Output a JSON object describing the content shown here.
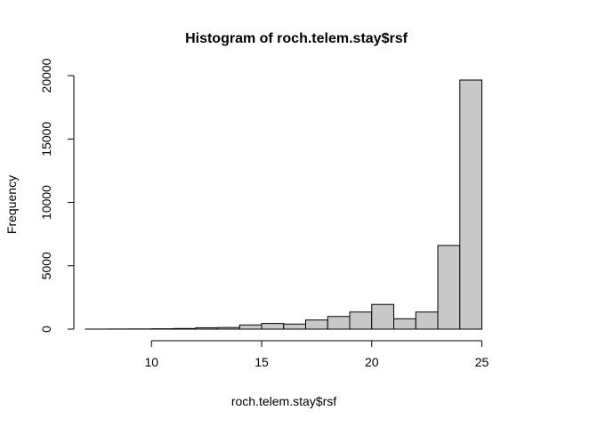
{
  "chart_data": {
    "type": "bar",
    "title": "Histogram of roch.telem.stay$rsf",
    "xlabel": "roch.telem.stay$rsf",
    "ylabel": "Frequency",
    "bin_width": 1,
    "bins": [
      {
        "start": 7,
        "end": 8,
        "count": 5
      },
      {
        "start": 8,
        "end": 9,
        "count": 10
      },
      {
        "start": 9,
        "end": 10,
        "count": 15
      },
      {
        "start": 10,
        "end": 11,
        "count": 30
      },
      {
        "start": 11,
        "end": 12,
        "count": 50
      },
      {
        "start": 12,
        "end": 13,
        "count": 110
      },
      {
        "start": 13,
        "end": 14,
        "count": 130
      },
      {
        "start": 14,
        "end": 15,
        "count": 330
      },
      {
        "start": 15,
        "end": 16,
        "count": 450
      },
      {
        "start": 16,
        "end": 17,
        "count": 400
      },
      {
        "start": 17,
        "end": 18,
        "count": 720
      },
      {
        "start": 18,
        "end": 19,
        "count": 1000
      },
      {
        "start": 19,
        "end": 20,
        "count": 1350
      },
      {
        "start": 20,
        "end": 21,
        "count": 1950
      },
      {
        "start": 21,
        "end": 22,
        "count": 820
      },
      {
        "start": 22,
        "end": 23,
        "count": 1350
      },
      {
        "start": 23,
        "end": 24,
        "count": 6600
      },
      {
        "start": 24,
        "end": 25,
        "count": 19650
      }
    ],
    "x_ticks": [
      10,
      15,
      20,
      25
    ],
    "y_ticks": [
      0,
      5000,
      10000,
      15000,
      20000
    ],
    "xlim": [
      10,
      25
    ],
    "ylim": [
      0,
      20000
    ],
    "bar_fill": "#c8c8c8",
    "bar_stroke": "#000000",
    "grid": false
  }
}
